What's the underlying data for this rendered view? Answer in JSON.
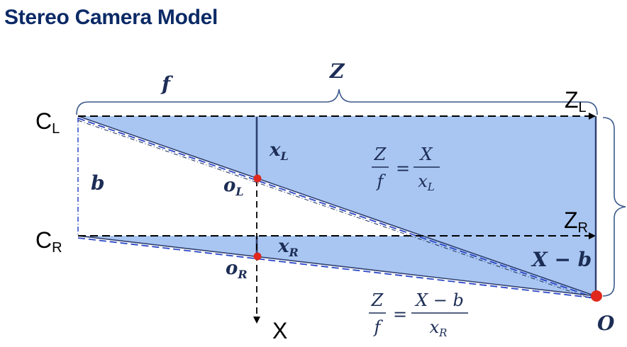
{
  "title": "Stereo Camera Model",
  "labels": {
    "f": "f",
    "Z": "Z",
    "CL_main": "C",
    "CL_sub": "L",
    "CR_main": "C",
    "CR_sub": "R",
    "ZL_main": "Z",
    "ZL_sub": "L",
    "ZR_main": "Z",
    "ZR_sub": "R",
    "b": "b",
    "xL_main": "x",
    "xL_sub": "L",
    "xR_main": "x",
    "xR_sub": "R",
    "oL_main": "o",
    "oL_sub": "L",
    "oR_main": "o",
    "oR_sub": "R",
    "X_axis": "X",
    "X_minus_b": "X − b",
    "O": "O"
  },
  "equations": {
    "eq1": {
      "num_left": "Z",
      "den_left": "f",
      "eq": "=",
      "num_right": "X",
      "den_right_main": "x",
      "den_right_sub": "L"
    },
    "eq2": {
      "num_left": "Z",
      "den_left": "f",
      "eq": "=",
      "num_right": "X − b",
      "den_right_main": "x",
      "den_right_sub": "R"
    }
  },
  "colors": {
    "fill": "#a9c6f2",
    "edge": "#2e3f6f",
    "dash_blue": "#2a46c7",
    "brace": "#3d5a8c",
    "point": "#e0281e",
    "title": "#0b2a66"
  }
}
